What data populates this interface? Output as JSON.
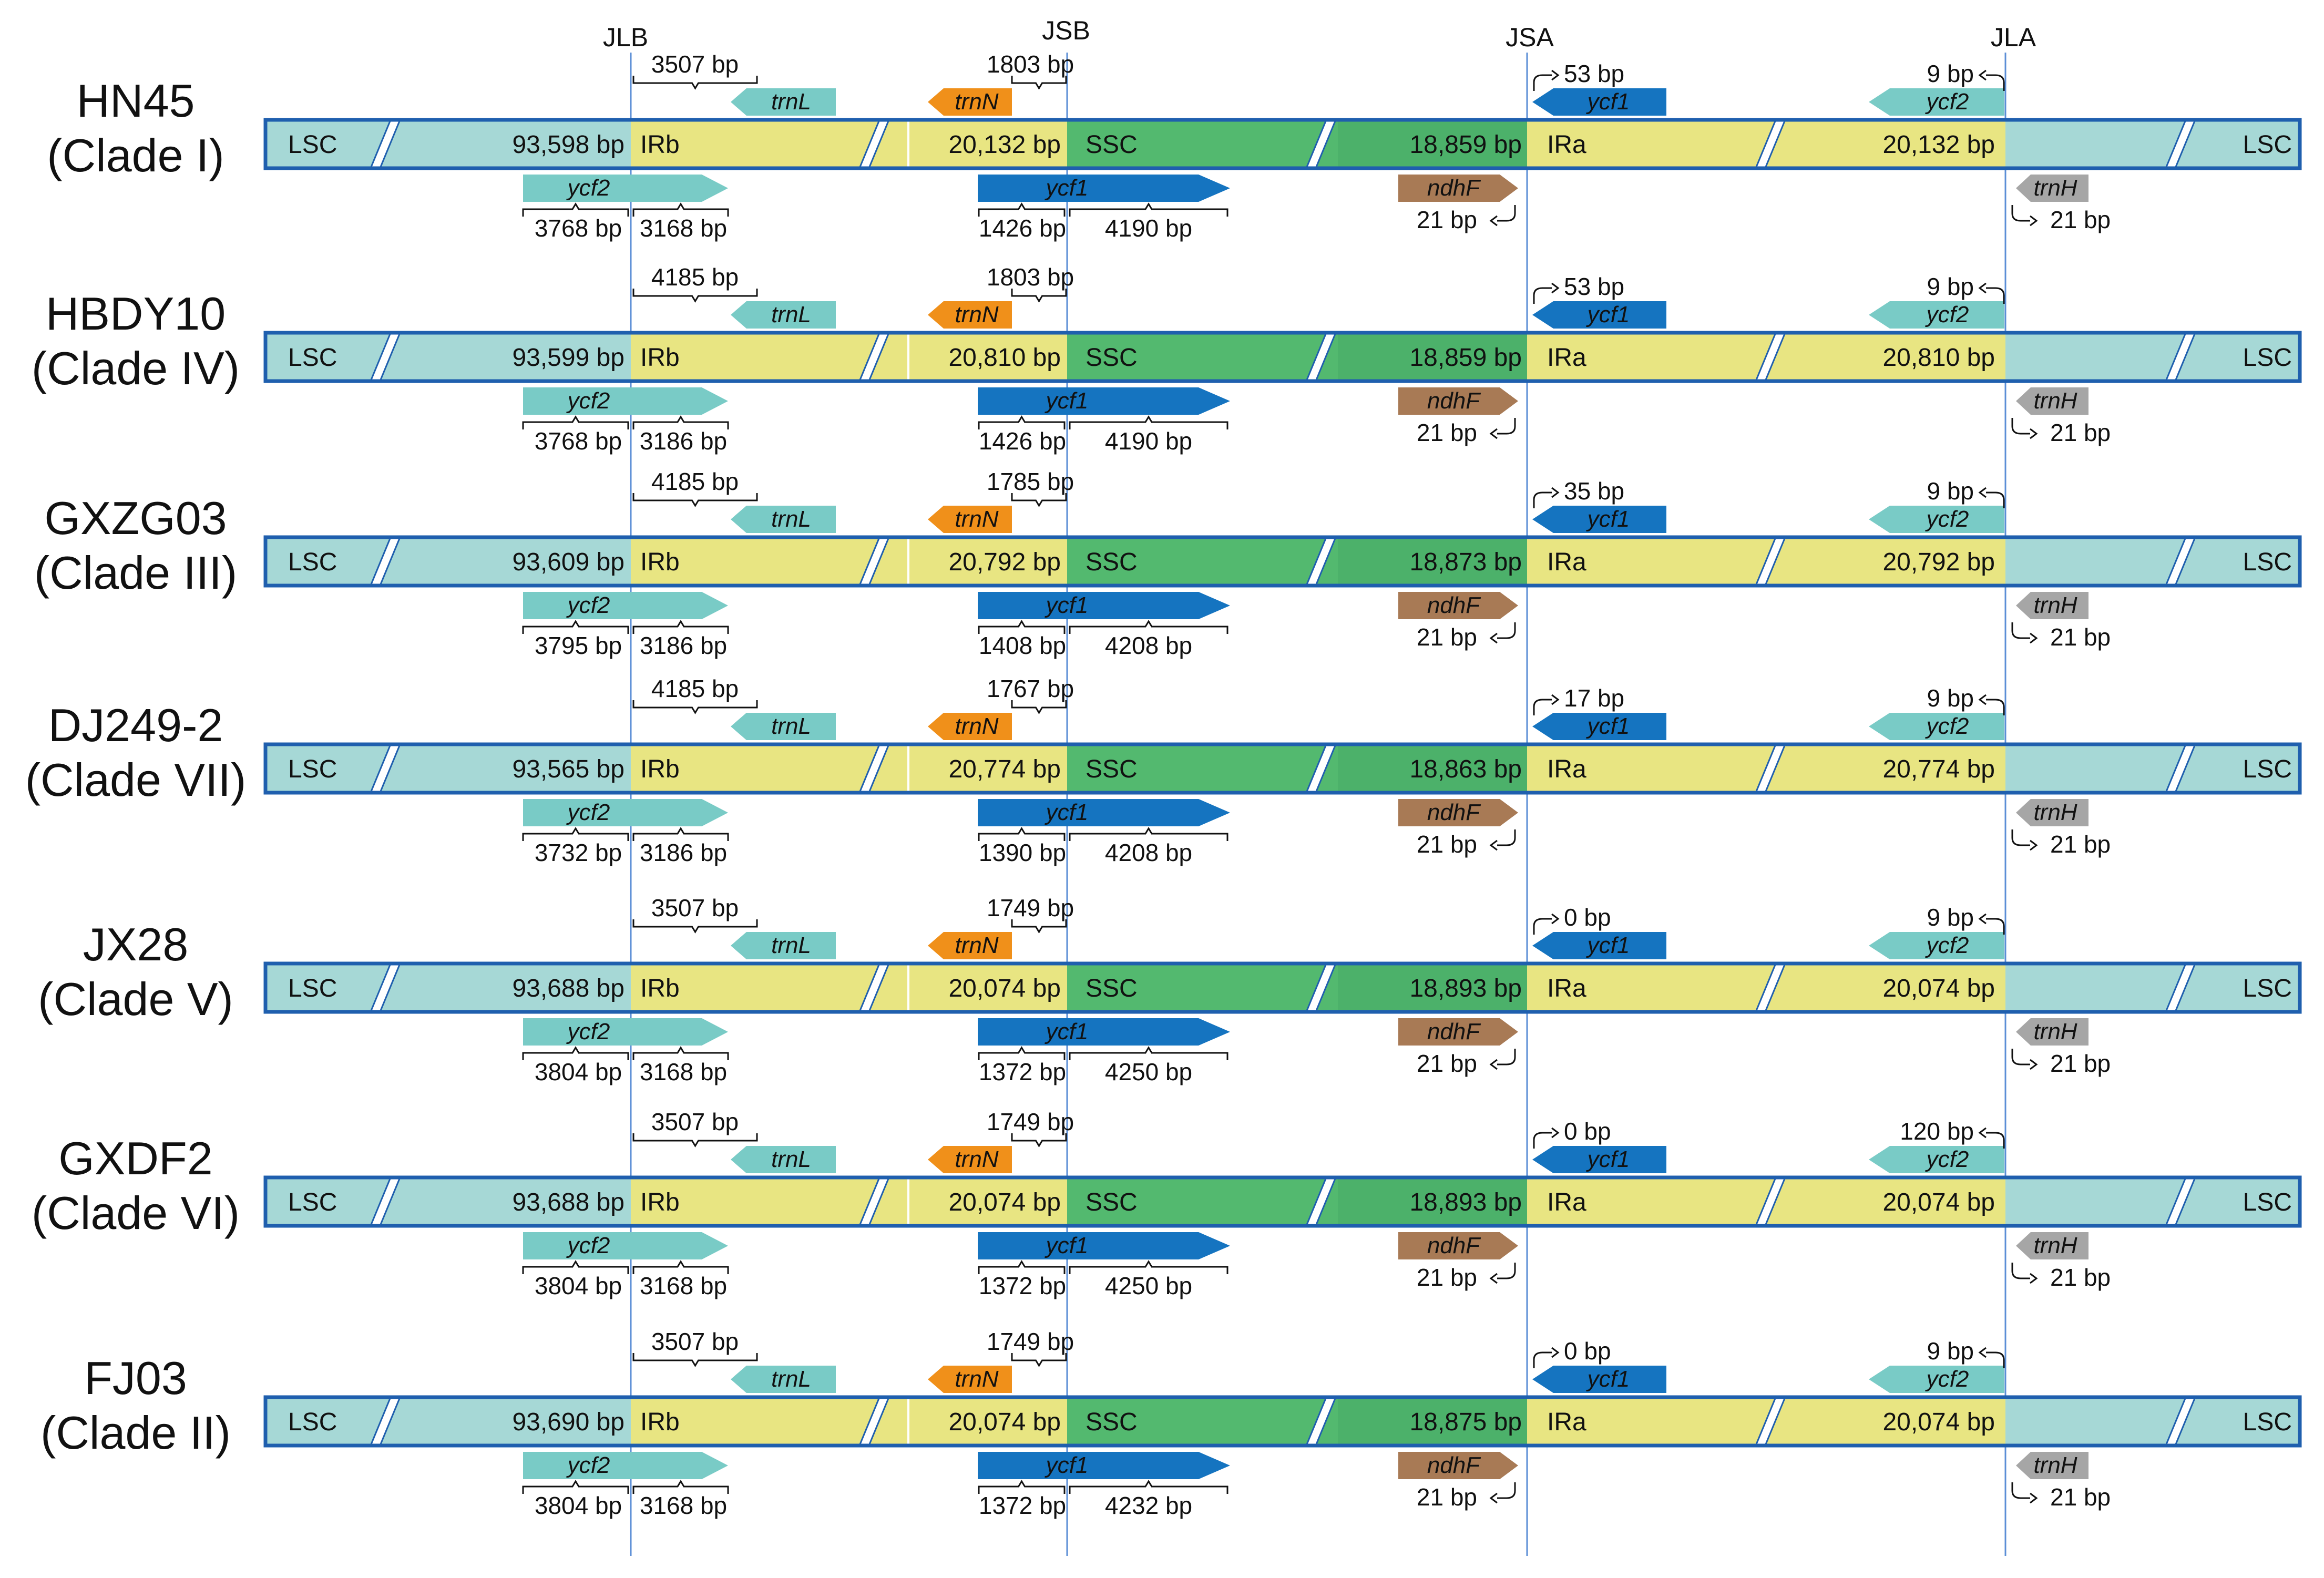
{
  "junctions": {
    "jlb": "JLB",
    "jsb": "JSB",
    "jsa": "JSA",
    "jla": "JLA"
  },
  "colors": {
    "lsc": "#a6d8d6",
    "ir": "#e8e582",
    "ssc": "#53b96f",
    "border": "#1f5fae",
    "ycf2": "#79cbc6",
    "ycf1": "#1574c0",
    "trnN": "#f0901a",
    "ndhF": "#a87a55",
    "trnH": "#a6a6a6",
    "trnL": "#79cbc6",
    "jline": "#5b8ed6"
  },
  "rows": [
    {
      "name": "HN45",
      "clade": "(Clade I)",
      "lsc_left": "LSC",
      "lsc_len": "93,598 bp",
      "irb": "IRb",
      "ir_len_left": "20,132 bp",
      "ssc": "SSC",
      "ssc_len": "18,859 bp",
      "ira": "IRa",
      "ir_len_right": "20,132 bp",
      "lsc_right": "LSC",
      "trnL_label": "trnL",
      "trnL_dist": "3507 bp",
      "trnN_label": "trnN",
      "trnN_dist": "1803 bp",
      "ycf1_top_label": "ycf1",
      "ycf1_top_dist": "53 bp",
      "ycf2_top_label": "ycf2",
      "ycf2_top_dist": "9 bp",
      "ycf2_bot_label": "ycf2",
      "ycf2_left_len": "3768 bp",
      "ycf2_right_len": "3168 bp",
      "ycf1_bot_label": "ycf1",
      "ycf1_left_len": "1426 bp",
      "ycf1_right_len": "4190 bp",
      "ndhF_label": "ndhF",
      "ndhF_dist": "21 bp",
      "trnH_label": "trnH",
      "trnH_dist": "21 bp"
    },
    {
      "name": "HBDY10",
      "clade": "(Clade IV)",
      "lsc_left": "LSC",
      "lsc_len": "93,599 bp",
      "irb": "IRb",
      "ir_len_left": "20,810 bp",
      "ssc": "SSC",
      "ssc_len": "18,859 bp",
      "ira": "IRa",
      "ir_len_right": "20,810 bp",
      "lsc_right": "LSC",
      "trnL_label": "trnL",
      "trnL_dist": "4185 bp",
      "trnN_label": "trnN",
      "trnN_dist": "1803 bp",
      "ycf1_top_label": "ycf1",
      "ycf1_top_dist": "53 bp",
      "ycf2_top_label": "ycf2",
      "ycf2_top_dist": "9 bp",
      "ycf2_bot_label": "ycf2",
      "ycf2_left_len": "3768 bp",
      "ycf2_right_len": "3186 bp",
      "ycf1_bot_label": "ycf1",
      "ycf1_left_len": "1426 bp",
      "ycf1_right_len": "4190 bp",
      "ndhF_label": "ndhF",
      "ndhF_dist": "21 bp",
      "trnH_label": "trnH",
      "trnH_dist": "21 bp"
    },
    {
      "name": "GXZG03",
      "clade": "(Clade III)",
      "lsc_left": "LSC",
      "lsc_len": "93,609 bp",
      "irb": "IRb",
      "ir_len_left": "20,792 bp",
      "ssc": "SSC",
      "ssc_len": "18,873 bp",
      "ira": "IRa",
      "ir_len_right": "20,792 bp",
      "lsc_right": "LSC",
      "trnL_label": "trnL",
      "trnL_dist": "4185 bp",
      "trnN_label": "trnN",
      "trnN_dist": "1785 bp",
      "ycf1_top_label": "ycf1",
      "ycf1_top_dist": "35 bp",
      "ycf2_top_label": "ycf2",
      "ycf2_top_dist": "9 bp",
      "ycf2_bot_label": "ycf2",
      "ycf2_left_len": "3795 bp",
      "ycf2_right_len": "3186 bp",
      "ycf1_bot_label": "ycf1",
      "ycf1_left_len": "1408 bp",
      "ycf1_right_len": "4208 bp",
      "ndhF_label": "ndhF",
      "ndhF_dist": "21 bp",
      "trnH_label": "trnH",
      "trnH_dist": "21 bp"
    },
    {
      "name": "DJ249-2",
      "clade": "(Clade VII)",
      "lsc_left": "LSC",
      "lsc_len": "93,565 bp",
      "irb": "IRb",
      "ir_len_left": "20,774 bp",
      "ssc": "SSC",
      "ssc_len": "18,863 bp",
      "ira": "IRa",
      "ir_len_right": "20,774 bp",
      "lsc_right": "LSC",
      "trnL_label": "trnL",
      "trnL_dist": "4185 bp",
      "trnN_label": "trnN",
      "trnN_dist": "1767 bp",
      "ycf1_top_label": "ycf1",
      "ycf1_top_dist": "17 bp",
      "ycf2_top_label": "ycf2",
      "ycf2_top_dist": "9 bp",
      "ycf2_bot_label": "ycf2",
      "ycf2_left_len": "3732 bp",
      "ycf2_right_len": "3186 bp",
      "ycf1_bot_label": "ycf1",
      "ycf1_left_len": "1390 bp",
      "ycf1_right_len": "4208 bp",
      "ndhF_label": "ndhF",
      "ndhF_dist": "21 bp",
      "trnH_label": "trnH",
      "trnH_dist": "21 bp"
    },
    {
      "name": "JX28",
      "clade": "(Clade V)",
      "lsc_left": "LSC",
      "lsc_len": "93,688 bp",
      "irb": "IRb",
      "ir_len_left": "20,074 bp",
      "ssc": "SSC",
      "ssc_len": "18,893 bp",
      "ira": "IRa",
      "ir_len_right": "20,074 bp",
      "lsc_right": "LSC",
      "trnL_label": "trnL",
      "trnL_dist": "3507 bp",
      "trnN_label": "trnN",
      "trnN_dist": "1749 bp",
      "ycf1_top_label": "ycf1",
      "ycf1_top_dist": "0 bp",
      "ycf2_top_label": "ycf2",
      "ycf2_top_dist": "9 bp",
      "ycf2_bot_label": "ycf2",
      "ycf2_left_len": "3804 bp",
      "ycf2_right_len": "3168 bp",
      "ycf1_bot_label": "ycf1",
      "ycf1_left_len": "1372 bp",
      "ycf1_right_len": "4250 bp",
      "ndhF_label": "ndhF",
      "ndhF_dist": "21 bp",
      "trnH_label": "trnH",
      "trnH_dist": "21 bp"
    },
    {
      "name": "GXDF2",
      "clade": "(Clade VI)",
      "lsc_left": "LSC",
      "lsc_len": "93,688 bp",
      "irb": "IRb",
      "ir_len_left": "20,074 bp",
      "ssc": "SSC",
      "ssc_len": "18,893 bp",
      "ira": "IRa",
      "ir_len_right": "20,074 bp",
      "lsc_right": "LSC",
      "trnL_label": "trnL",
      "trnL_dist": "3507 bp",
      "trnN_label": "trnN",
      "trnN_dist": "1749 bp",
      "ycf1_top_label": "ycf1",
      "ycf1_top_dist": "0 bp",
      "ycf2_top_label": "ycf2",
      "ycf2_top_dist": "120 bp",
      "ycf2_bot_label": "ycf2",
      "ycf2_left_len": "3804 bp",
      "ycf2_right_len": "3168 bp",
      "ycf1_bot_label": "ycf1",
      "ycf1_left_len": "1372 bp",
      "ycf1_right_len": "4250 bp",
      "ndhF_label": "ndhF",
      "ndhF_dist": "21 bp",
      "trnH_label": "trnH",
      "trnH_dist": "21 bp"
    },
    {
      "name": "FJ03",
      "clade": "(Clade II)",
      "lsc_left": "LSC",
      "lsc_len": "93,690 bp",
      "irb": "IRb",
      "ir_len_left": "20,074 bp",
      "ssc": "SSC",
      "ssc_len": "18,875 bp",
      "ira": "IRa",
      "ir_len_right": "20,074 bp",
      "lsc_right": "LSC",
      "trnL_label": "trnL",
      "trnL_dist": "3507 bp",
      "trnN_label": "trnN",
      "trnN_dist": "1749 bp",
      "ycf1_top_label": "ycf1",
      "ycf1_top_dist": "0 bp",
      "ycf2_top_label": "ycf2",
      "ycf2_top_dist": "9 bp",
      "ycf2_bot_label": "ycf2",
      "ycf2_left_len": "3804 bp",
      "ycf2_right_len": "3168 bp",
      "ycf1_bot_label": "ycf1",
      "ycf1_left_len": "1372 bp",
      "ycf1_right_len": "4232 bp",
      "ndhF_label": "ndhF",
      "ndhF_dist": "21 bp",
      "trnH_label": "trnH",
      "trnH_dist": "21 bp"
    }
  ]
}
